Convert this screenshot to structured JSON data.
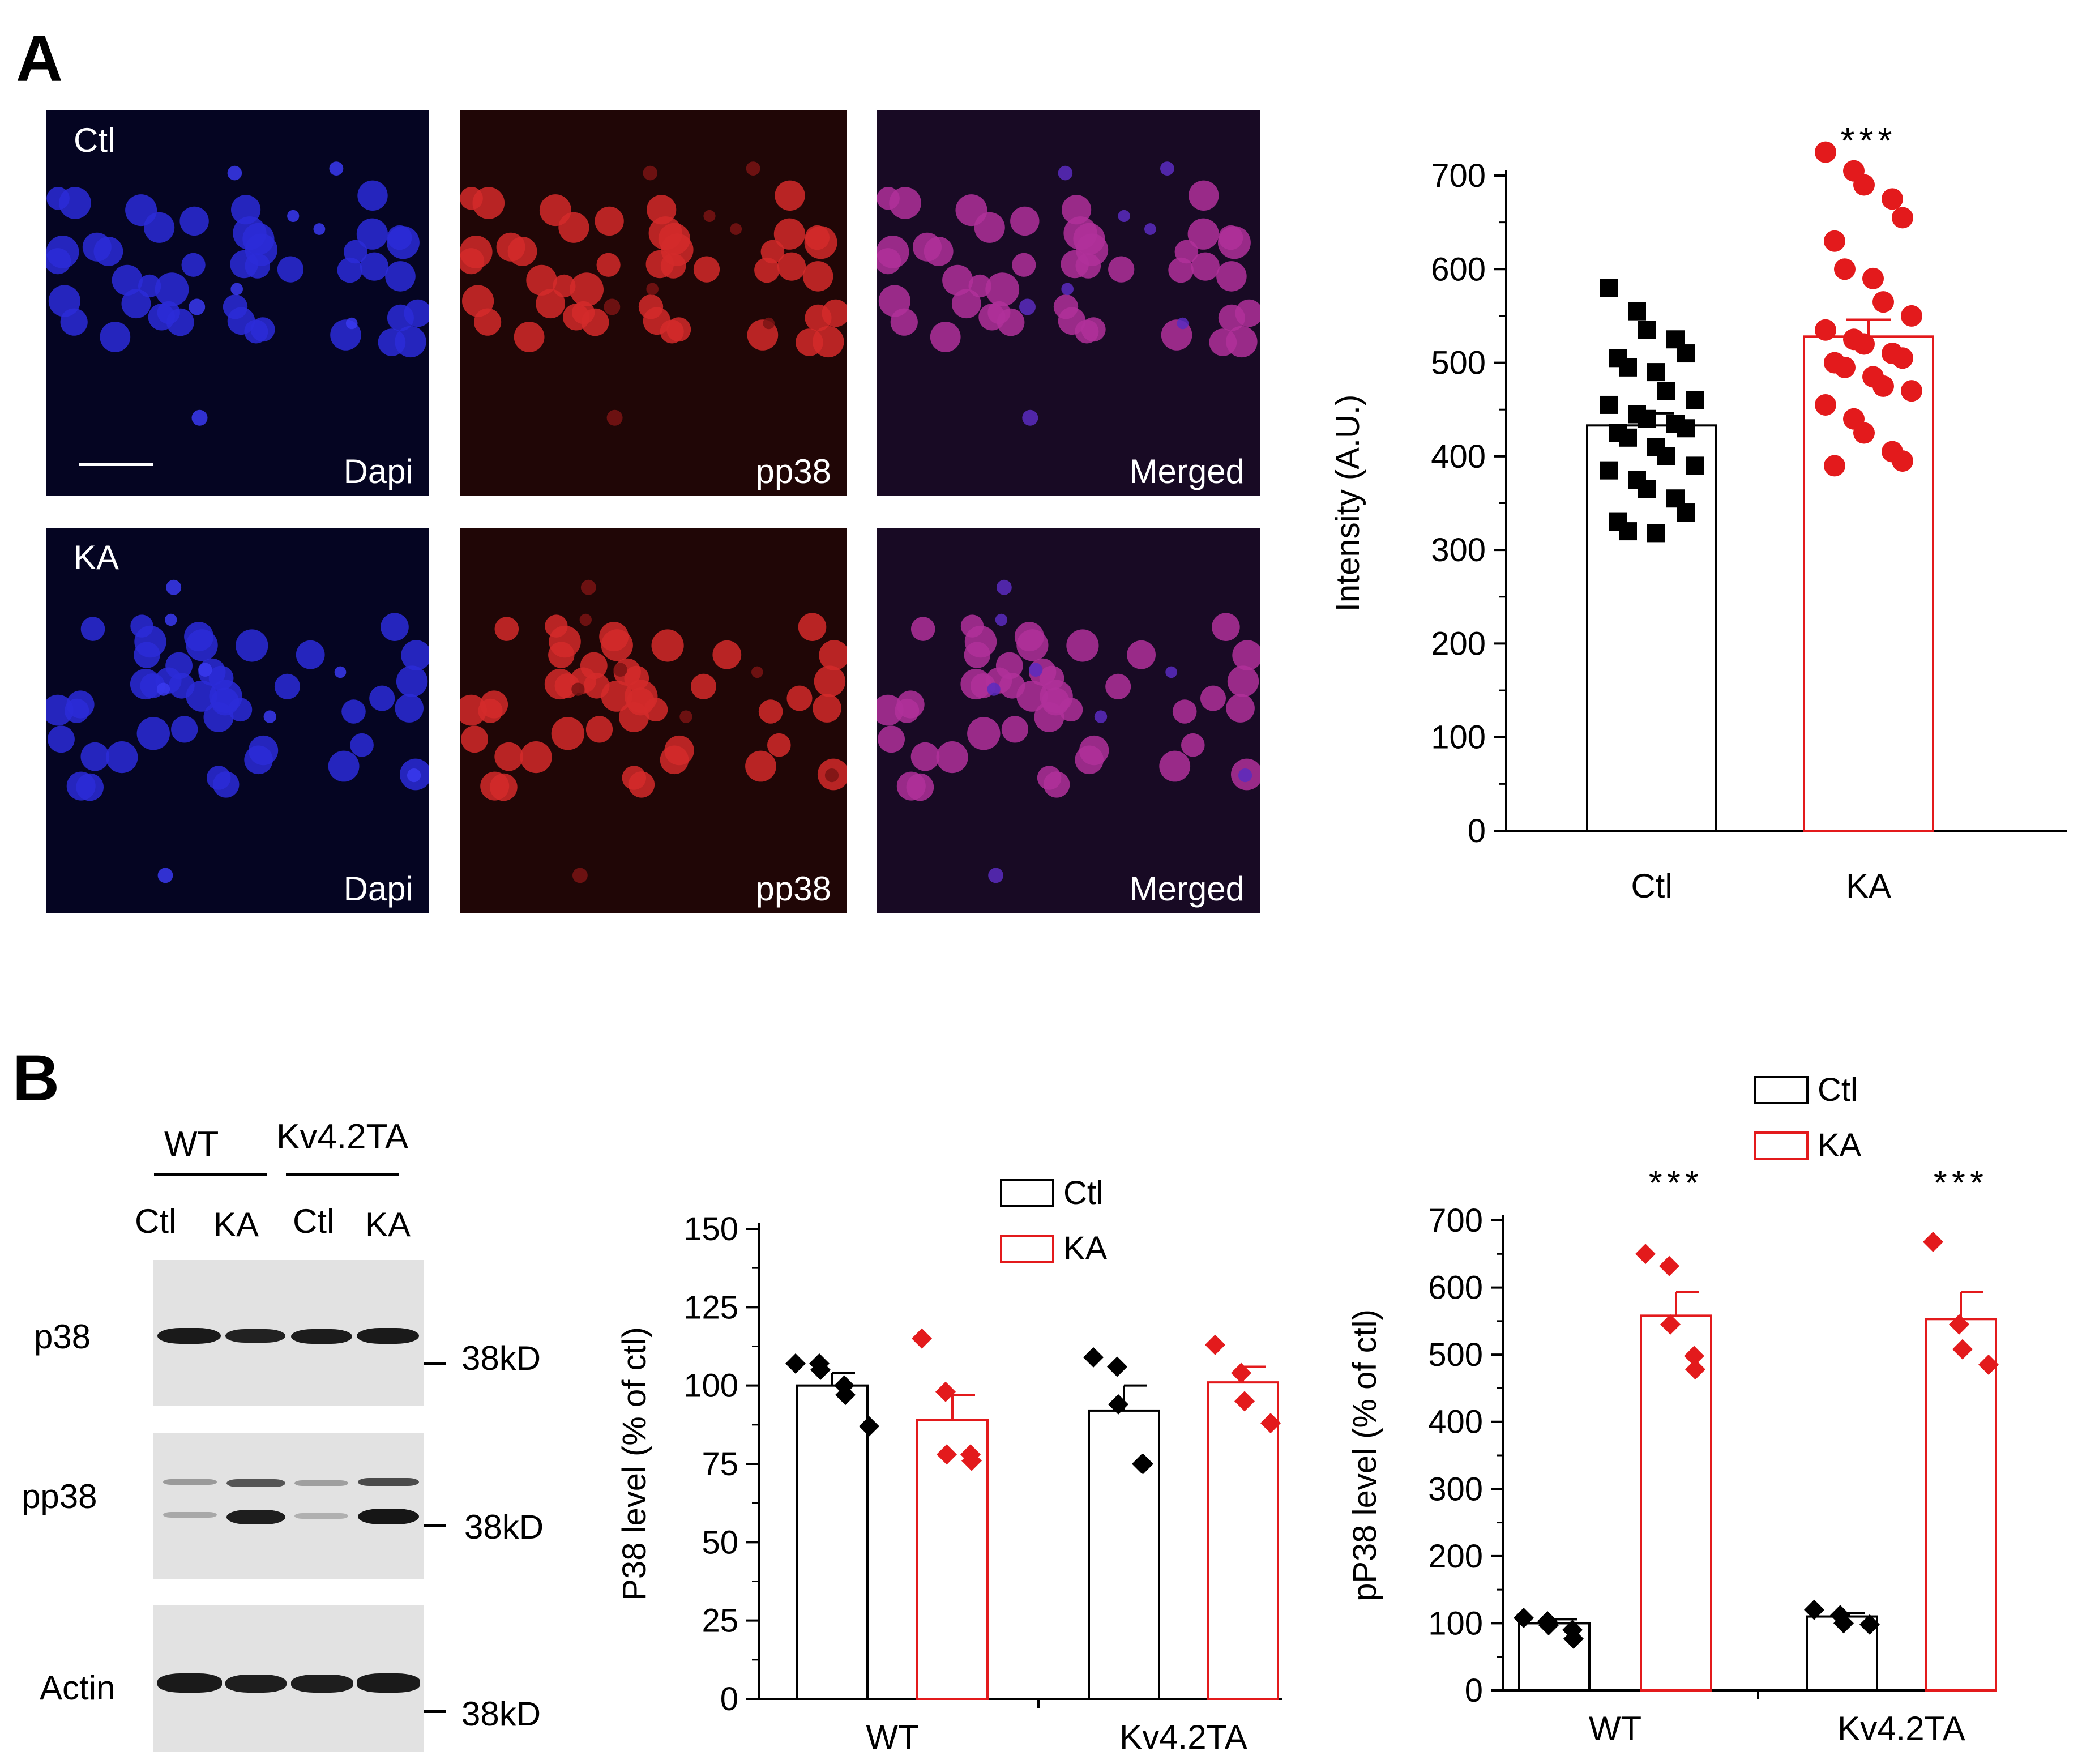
{
  "panels": {
    "A": "A",
    "B": "B"
  },
  "panelA": {
    "rows": [
      {
        "label": "Ctl",
        "channels": [
          "Dapi",
          "pp38",
          "Merged"
        ]
      },
      {
        "label": "KA",
        "channels": [
          "Dapi",
          "pp38",
          "Merged"
        ]
      }
    ],
    "colors": {
      "dapi": "#1a1aa8",
      "pp38": "#c81e1e",
      "merged_bg": "#2a0f3a"
    }
  },
  "panelB_blot": {
    "group_labels": [
      "WT",
      "Kv4.2TA"
    ],
    "lane_labels": [
      "Ctl",
      "KA",
      "Ctl",
      "KA"
    ],
    "rows": [
      {
        "name": "p38",
        "marker": "38kD"
      },
      {
        "name": "pp38",
        "marker": "38kD"
      },
      {
        "name": "Actin",
        "marker": "38kD"
      }
    ]
  },
  "chart_data": [
    {
      "type": "bar",
      "categories": [
        "Ctl",
        "KA"
      ],
      "values": [
        433,
        528
      ],
      "errors": [
        13,
        18
      ],
      "ylabel": "Intensity (A.U.)",
      "ylim": [
        0,
        700
      ],
      "yticks": [
        0,
        100,
        200,
        300,
        400,
        500,
        600,
        700
      ],
      "significance": [
        "",
        "***"
      ],
      "colors": [
        "#000000",
        "#e31a1c"
      ],
      "points": [
        [
          580,
          555,
          535,
          525,
          510,
          505,
          495,
          490,
          470,
          460,
          455,
          445,
          440,
          435,
          430,
          425,
          420,
          410,
          400,
          390,
          385,
          375,
          365,
          355,
          340,
          330,
          320,
          318
        ],
        [
          725,
          705,
          690,
          675,
          655,
          630,
          600,
          590,
          565,
          550,
          535,
          525,
          520,
          510,
          505,
          500,
          495,
          485,
          475,
          470,
          455,
          440,
          425,
          405,
          395,
          390
        ]
      ]
    },
    {
      "type": "bar",
      "categories": [
        "WT",
        "Kv4.2TA"
      ],
      "series": [
        {
          "name": "Ctl",
          "values": [
            100,
            92
          ],
          "errors": [
            4,
            8
          ],
          "points": [
            [
              107,
              107,
              105,
              100,
              97,
              87
            ],
            [
              109,
              106,
              94,
              75,
              75
            ]
          ]
        },
        {
          "name": "KA",
          "values": [
            89,
            101
          ],
          "errors": [
            8,
            5
          ],
          "points": [
            [
              115,
              98,
              78,
              78,
              76
            ],
            [
              113,
              104,
              95,
              88
            ]
          ]
        }
      ],
      "ylabel": "P38 level (% of ctl)",
      "ylim": [
        0,
        150
      ],
      "yticks": [
        0,
        25,
        50,
        75,
        100,
        125,
        150
      ],
      "legend": "top",
      "colors": [
        "#000000",
        "#e31a1c"
      ]
    },
    {
      "type": "bar",
      "categories": [
        "WT",
        "Kv4.2TA"
      ],
      "series": [
        {
          "name": "Ctl",
          "values": [
            100,
            110
          ],
          "errors": [
            6,
            5
          ],
          "points": [
            [
              108,
              103,
              97,
              90,
              77
            ],
            [
              120,
              112,
              100,
              98
            ]
          ]
        },
        {
          "name": "KA",
          "values": [
            558,
            553
          ],
          "errors": [
            35,
            40
          ],
          "points": [
            [
              650,
              632,
              545,
              498,
              478
            ],
            [
              668,
              545,
              508,
              485
            ]
          ]
        }
      ],
      "ylabel": "pP38 level (% of ctl)",
      "ylim": [
        0,
        700
      ],
      "yticks": [
        0,
        100,
        200,
        300,
        400,
        500,
        600,
        700
      ],
      "significance": [
        "***",
        "***"
      ],
      "legend": "top-left",
      "colors": [
        "#000000",
        "#e31a1c"
      ]
    }
  ]
}
